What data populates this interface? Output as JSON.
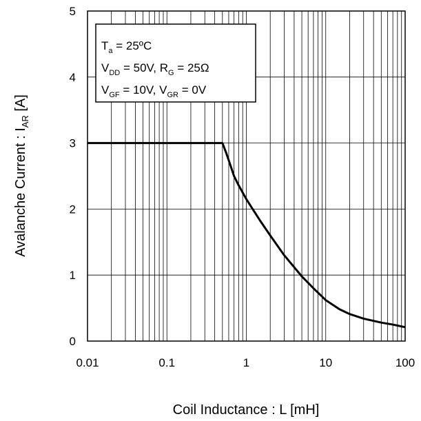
{
  "chart_data": {
    "type": "line",
    "x_scale": "log",
    "xlim": [
      0.01,
      100
    ],
    "ylim": [
      0,
      5
    ],
    "xlabel": "Coil Inductance : L [mH]",
    "ylabel": {
      "main": "Avalanche Current : I",
      "sub": "AR",
      "unit": " [A]"
    },
    "x_ticks": [
      "0.01",
      "0.1",
      "1",
      "10",
      "100"
    ],
    "y_ticks": [
      "0",
      "1",
      "2",
      "3",
      "4",
      "5"
    ],
    "grid": true,
    "conditions": {
      "line1": {
        "a": "T",
        "a_sub": "a",
        "b": " = 25ºC"
      },
      "line2": {
        "a": "V",
        "a_sub": "DD",
        "b": " = 50V, R",
        "b_sub": "G",
        "c": " = 25Ω"
      },
      "line3": {
        "a": "V",
        "a_sub": "GF",
        "b": " = 10V, V",
        "b_sub": "GR",
        "c": " = 0V"
      }
    },
    "series": [
      {
        "x": [
          0.01,
          0.5,
          0.55,
          0.6,
          0.7,
          0.8,
          1,
          1.5,
          2,
          3,
          5,
          7,
          10,
          15,
          20,
          30,
          50,
          70,
          100
        ],
        "y": [
          3,
          3,
          2.87,
          2.74,
          2.5,
          2.36,
          2.15,
          1.82,
          1.6,
          1.3,
          0.98,
          0.8,
          0.62,
          0.48,
          0.41,
          0.34,
          0.28,
          0.25,
          0.21
        ]
      }
    ]
  }
}
